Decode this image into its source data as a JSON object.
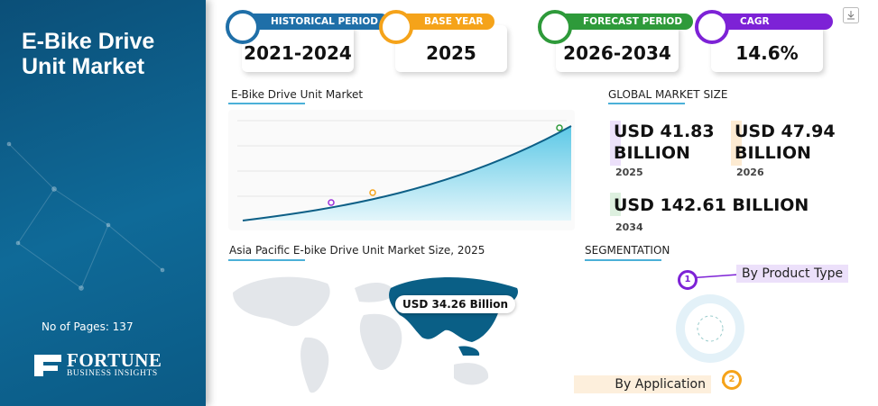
{
  "sidebar": {
    "title": "E-Bike Drive Unit Market",
    "pages": "No of Pages: 137",
    "logo": "FORTUNE",
    "logo_sub": "BUSINESS INSIGHTS"
  },
  "stats": [
    {
      "label": "HISTORICAL PERIOD",
      "value": "2021-2024"
    },
    {
      "label": "BASE YEAR",
      "value": "2025"
    },
    {
      "label": "FORECAST PERIOD",
      "value": "2026-2034"
    },
    {
      "label": "CAGR",
      "value": "14.6%"
    }
  ],
  "chart": {
    "title": "E-Bike Drive Unit Market"
  },
  "global_market": {
    "title": "GLOBAL MARKET SIZE",
    "items": [
      {
        "value": "USD 41.83 BILLION",
        "year": "2025"
      },
      {
        "value": "USD 47.94 BILLION",
        "year": "2026"
      },
      {
        "value": "USD 142.61 BILLION",
        "year": "2034"
      }
    ]
  },
  "map": {
    "title": "Asia Pacific E-bike Drive Unit Market Size, 2025",
    "label": "USD 34.26 Billion"
  },
  "segmentation": {
    "title": "SEGMENTATION",
    "items": [
      {
        "number": "1",
        "label": "By Product Type"
      },
      {
        "number": "2",
        "label": "By Application"
      }
    ]
  }
}
